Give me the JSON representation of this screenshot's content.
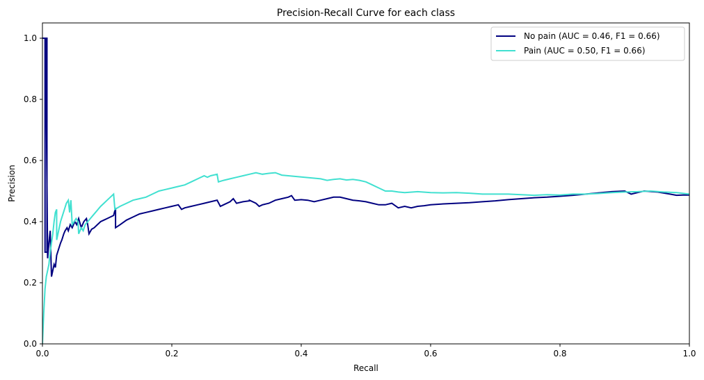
{
  "chart_data": {
    "type": "line",
    "title": "Precision-Recall Curve for each class",
    "xlabel": "Recall",
    "ylabel": "Precision",
    "xlim": [
      0,
      1
    ],
    "ylim": [
      0,
      1.05
    ],
    "xticks": [
      0,
      0.2,
      0.4,
      0.6,
      0.8,
      1.0
    ],
    "xtick_labels": [
      "0.0",
      "0.2",
      "0.4",
      "0.6",
      "0.8",
      "1.0"
    ],
    "yticks": [
      0,
      0.2,
      0.4,
      0.6,
      0.8,
      1.0
    ],
    "ytick_labels": [
      "0.0",
      "0.2",
      "0.4",
      "0.6",
      "0.8",
      "1.0"
    ],
    "grid": false,
    "legend_position": "top-right",
    "series": [
      {
        "name": "No pain (AUC = 0.46, F1 = 0.66)",
        "color": "#000080",
        "points": [
          [
            0.0,
            1.0
          ],
          [
            0.004,
            1.0
          ],
          [
            0.004,
            0.3
          ],
          [
            0.007,
            0.3
          ],
          [
            0.007,
            1.0
          ],
          [
            0.005,
            1.0
          ],
          [
            0.008,
            0.28
          ],
          [
            0.01,
            0.33
          ],
          [
            0.012,
            0.37
          ],
          [
            0.014,
            0.22
          ],
          [
            0.016,
            0.24
          ],
          [
            0.018,
            0.26
          ],
          [
            0.02,
            0.25
          ],
          [
            0.022,
            0.29
          ],
          [
            0.025,
            0.31
          ],
          [
            0.028,
            0.33
          ],
          [
            0.03,
            0.34
          ],
          [
            0.033,
            0.36
          ],
          [
            0.035,
            0.37
          ],
          [
            0.038,
            0.38
          ],
          [
            0.04,
            0.37
          ],
          [
            0.043,
            0.39
          ],
          [
            0.046,
            0.38
          ],
          [
            0.05,
            0.4
          ],
          [
            0.053,
            0.39
          ],
          [
            0.056,
            0.41
          ],
          [
            0.06,
            0.38
          ],
          [
            0.064,
            0.4
          ],
          [
            0.068,
            0.41
          ],
          [
            0.07,
            0.39
          ],
          [
            0.072,
            0.36
          ],
          [
            0.076,
            0.375
          ],
          [
            0.08,
            0.38
          ],
          [
            0.085,
            0.39
          ],
          [
            0.09,
            0.4
          ],
          [
            0.095,
            0.405
          ],
          [
            0.1,
            0.41
          ],
          [
            0.105,
            0.415
          ],
          [
            0.11,
            0.42
          ],
          [
            0.113,
            0.445
          ],
          [
            0.113,
            0.38
          ],
          [
            0.12,
            0.39
          ],
          [
            0.13,
            0.405
          ],
          [
            0.14,
            0.415
          ],
          [
            0.15,
            0.425
          ],
          [
            0.16,
            0.43
          ],
          [
            0.17,
            0.435
          ],
          [
            0.18,
            0.44
          ],
          [
            0.19,
            0.445
          ],
          [
            0.2,
            0.45
          ],
          [
            0.21,
            0.455
          ],
          [
            0.215,
            0.44
          ],
          [
            0.22,
            0.445
          ],
          [
            0.23,
            0.45
          ],
          [
            0.24,
            0.455
          ],
          [
            0.25,
            0.46
          ],
          [
            0.26,
            0.465
          ],
          [
            0.27,
            0.47
          ],
          [
            0.275,
            0.45
          ],
          [
            0.28,
            0.455
          ],
          [
            0.29,
            0.465
          ],
          [
            0.295,
            0.475
          ],
          [
            0.3,
            0.46
          ],
          [
            0.31,
            0.465
          ],
          [
            0.32,
            0.468
          ],
          [
            0.32,
            0.47
          ],
          [
            0.33,
            0.46
          ],
          [
            0.335,
            0.45
          ],
          [
            0.34,
            0.455
          ],
          [
            0.35,
            0.46
          ],
          [
            0.36,
            0.47
          ],
          [
            0.37,
            0.475
          ],
          [
            0.38,
            0.48
          ],
          [
            0.385,
            0.485
          ],
          [
            0.39,
            0.47
          ],
          [
            0.4,
            0.472
          ],
          [
            0.41,
            0.47
          ],
          [
            0.42,
            0.465
          ],
          [
            0.43,
            0.47
          ],
          [
            0.44,
            0.475
          ],
          [
            0.45,
            0.48
          ],
          [
            0.46,
            0.48
          ],
          [
            0.47,
            0.475
          ],
          [
            0.48,
            0.47
          ],
          [
            0.49,
            0.468
          ],
          [
            0.5,
            0.465
          ],
          [
            0.51,
            0.46
          ],
          [
            0.52,
            0.455
          ],
          [
            0.53,
            0.455
          ],
          [
            0.54,
            0.46
          ],
          [
            0.55,
            0.445
          ],
          [
            0.56,
            0.45
          ],
          [
            0.57,
            0.445
          ],
          [
            0.58,
            0.45
          ],
          [
            0.59,
            0.452
          ],
          [
            0.6,
            0.455
          ],
          [
            0.62,
            0.458
          ],
          [
            0.64,
            0.46
          ],
          [
            0.66,
            0.462
          ],
          [
            0.68,
            0.465
          ],
          [
            0.7,
            0.468
          ],
          [
            0.72,
            0.472
          ],
          [
            0.74,
            0.475
          ],
          [
            0.76,
            0.478
          ],
          [
            0.78,
            0.48
          ],
          [
            0.8,
            0.483
          ],
          [
            0.82,
            0.486
          ],
          [
            0.84,
            0.49
          ],
          [
            0.86,
            0.494
          ],
          [
            0.88,
            0.498
          ],
          [
            0.9,
            0.5
          ],
          [
            0.91,
            0.49
          ],
          [
            0.92,
            0.495
          ],
          [
            0.93,
            0.5
          ],
          [
            0.95,
            0.497
          ],
          [
            0.97,
            0.49
          ],
          [
            0.98,
            0.486
          ],
          [
            0.99,
            0.487
          ],
          [
            1.0,
            0.487
          ]
        ]
      },
      {
        "name": "Pain (AUC = 0.50, F1 = 0.66)",
        "color": "#40e0d0",
        "points": [
          [
            0.0,
            0.0
          ],
          [
            0.002,
            0.1
          ],
          [
            0.004,
            0.18
          ],
          [
            0.006,
            0.22
          ],
          [
            0.008,
            0.24
          ],
          [
            0.01,
            0.26
          ],
          [
            0.012,
            0.3
          ],
          [
            0.014,
            0.33
          ],
          [
            0.016,
            0.36
          ],
          [
            0.018,
            0.4
          ],
          [
            0.02,
            0.43
          ],
          [
            0.022,
            0.44
          ],
          [
            0.022,
            0.34
          ],
          [
            0.025,
            0.37
          ],
          [
            0.028,
            0.4
          ],
          [
            0.031,
            0.42
          ],
          [
            0.034,
            0.44
          ],
          [
            0.037,
            0.46
          ],
          [
            0.04,
            0.47
          ],
          [
            0.042,
            0.43
          ],
          [
            0.044,
            0.47
          ],
          [
            0.046,
            0.39
          ],
          [
            0.049,
            0.4
          ],
          [
            0.052,
            0.41
          ],
          [
            0.055,
            0.4
          ],
          [
            0.056,
            0.36
          ],
          [
            0.058,
            0.37
          ],
          [
            0.06,
            0.38
          ],
          [
            0.063,
            0.37
          ],
          [
            0.066,
            0.39
          ],
          [
            0.07,
            0.4
          ],
          [
            0.074,
            0.41
          ],
          [
            0.078,
            0.42
          ],
          [
            0.082,
            0.43
          ],
          [
            0.086,
            0.44
          ],
          [
            0.09,
            0.45
          ],
          [
            0.095,
            0.46
          ],
          [
            0.1,
            0.47
          ],
          [
            0.105,
            0.48
          ],
          [
            0.11,
            0.49
          ],
          [
            0.112,
            0.44
          ],
          [
            0.12,
            0.45
          ],
          [
            0.13,
            0.46
          ],
          [
            0.14,
            0.47
          ],
          [
            0.15,
            0.475
          ],
          [
            0.16,
            0.48
          ],
          [
            0.17,
            0.49
          ],
          [
            0.18,
            0.5
          ],
          [
            0.19,
            0.505
          ],
          [
            0.2,
            0.51
          ],
          [
            0.21,
            0.515
          ],
          [
            0.22,
            0.52
          ],
          [
            0.23,
            0.53
          ],
          [
            0.24,
            0.54
          ],
          [
            0.25,
            0.55
          ],
          [
            0.255,
            0.545
          ],
          [
            0.26,
            0.55
          ],
          [
            0.27,
            0.555
          ],
          [
            0.272,
            0.53
          ],
          [
            0.28,
            0.535
          ],
          [
            0.29,
            0.54
          ],
          [
            0.3,
            0.545
          ],
          [
            0.31,
            0.55
          ],
          [
            0.32,
            0.555
          ],
          [
            0.33,
            0.56
          ],
          [
            0.34,
            0.555
          ],
          [
            0.35,
            0.558
          ],
          [
            0.36,
            0.56
          ],
          [
            0.37,
            0.552
          ],
          [
            0.38,
            0.55
          ],
          [
            0.39,
            0.548
          ],
          [
            0.4,
            0.546
          ],
          [
            0.41,
            0.544
          ],
          [
            0.42,
            0.542
          ],
          [
            0.43,
            0.54
          ],
          [
            0.44,
            0.535
          ],
          [
            0.45,
            0.538
          ],
          [
            0.46,
            0.54
          ],
          [
            0.47,
            0.536
          ],
          [
            0.48,
            0.538
          ],
          [
            0.49,
            0.535
          ],
          [
            0.5,
            0.53
          ],
          [
            0.51,
            0.52
          ],
          [
            0.52,
            0.51
          ],
          [
            0.53,
            0.5
          ],
          [
            0.54,
            0.5
          ],
          [
            0.55,
            0.497
          ],
          [
            0.56,
            0.495
          ],
          [
            0.58,
            0.498
          ],
          [
            0.6,
            0.495
          ],
          [
            0.62,
            0.494
          ],
          [
            0.64,
            0.495
          ],
          [
            0.66,
            0.493
          ],
          [
            0.68,
            0.49
          ],
          [
            0.7,
            0.49
          ],
          [
            0.72,
            0.49
          ],
          [
            0.74,
            0.488
          ],
          [
            0.76,
            0.486
          ],
          [
            0.78,
            0.488
          ],
          [
            0.8,
            0.487
          ],
          [
            0.82,
            0.49
          ],
          [
            0.84,
            0.49
          ],
          [
            0.86,
            0.492
          ],
          [
            0.88,
            0.495
          ],
          [
            0.9,
            0.497
          ],
          [
            0.92,
            0.498
          ],
          [
            0.94,
            0.5
          ],
          [
            0.96,
            0.497
          ],
          [
            0.98,
            0.495
          ],
          [
            1.0,
            0.49
          ]
        ]
      }
    ]
  }
}
